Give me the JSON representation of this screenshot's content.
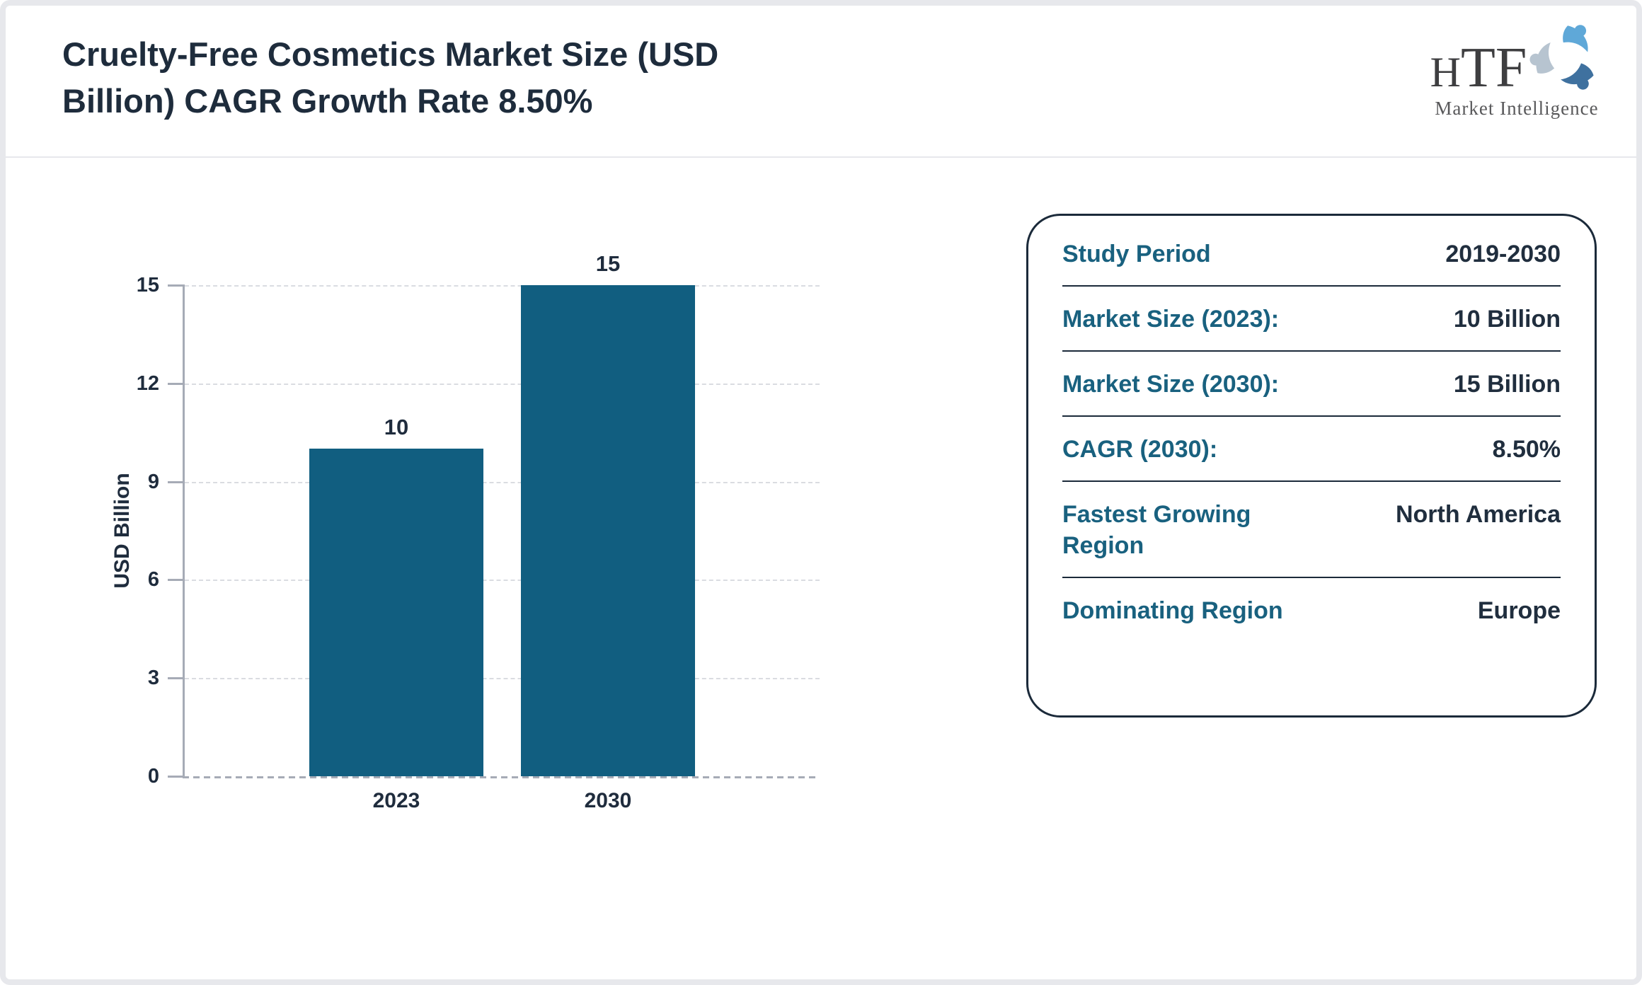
{
  "header": {
    "title": "Cruelty-Free Cosmetics Market Size (USD Billion) CAGR Growth Rate 8.50%"
  },
  "logo": {
    "letters": [
      "H",
      "T",
      "F"
    ],
    "subtitle": "Market Intelligence",
    "colors": {
      "swirl_light_blue": "#5fa8d8",
      "swirl_steel_blue": "#3f719f",
      "swirl_gray": "#b7c4d0",
      "text": "#3e3e40"
    }
  },
  "chart_data": {
    "type": "bar",
    "title": "",
    "categories": [
      "2023",
      "2030"
    ],
    "values": [
      10,
      15
    ],
    "data_labels": [
      "10",
      "15"
    ],
    "xlabel": "",
    "ylabel": "USD Billion",
    "ylim": [
      0,
      15
    ],
    "yticks": [
      0,
      3,
      6,
      9,
      12,
      15
    ],
    "grid": "horizontal dashed",
    "legend": "none",
    "bar_color": "#115e80",
    "axis_color": "#a6abb6",
    "label_color": "#1f2c3d"
  },
  "info_panel": {
    "rows": [
      {
        "label": "Study Period",
        "value": "2019-2030"
      },
      {
        "label": "Market Size (2023):",
        "value": "10 Billion"
      },
      {
        "label": "Market Size (2030):",
        "value": "15 Billion"
      },
      {
        "label": "CAGR (2030):",
        "value": "8.50%"
      },
      {
        "label": "Fastest Growing Region",
        "value": "North America"
      },
      {
        "label": "Dominating Region",
        "value": "Europe"
      }
    ]
  },
  "colors": {
    "navy": "#1e2c3c",
    "teal": "#19617f",
    "bar": "#115e80",
    "frame": "#e7e8ec"
  }
}
